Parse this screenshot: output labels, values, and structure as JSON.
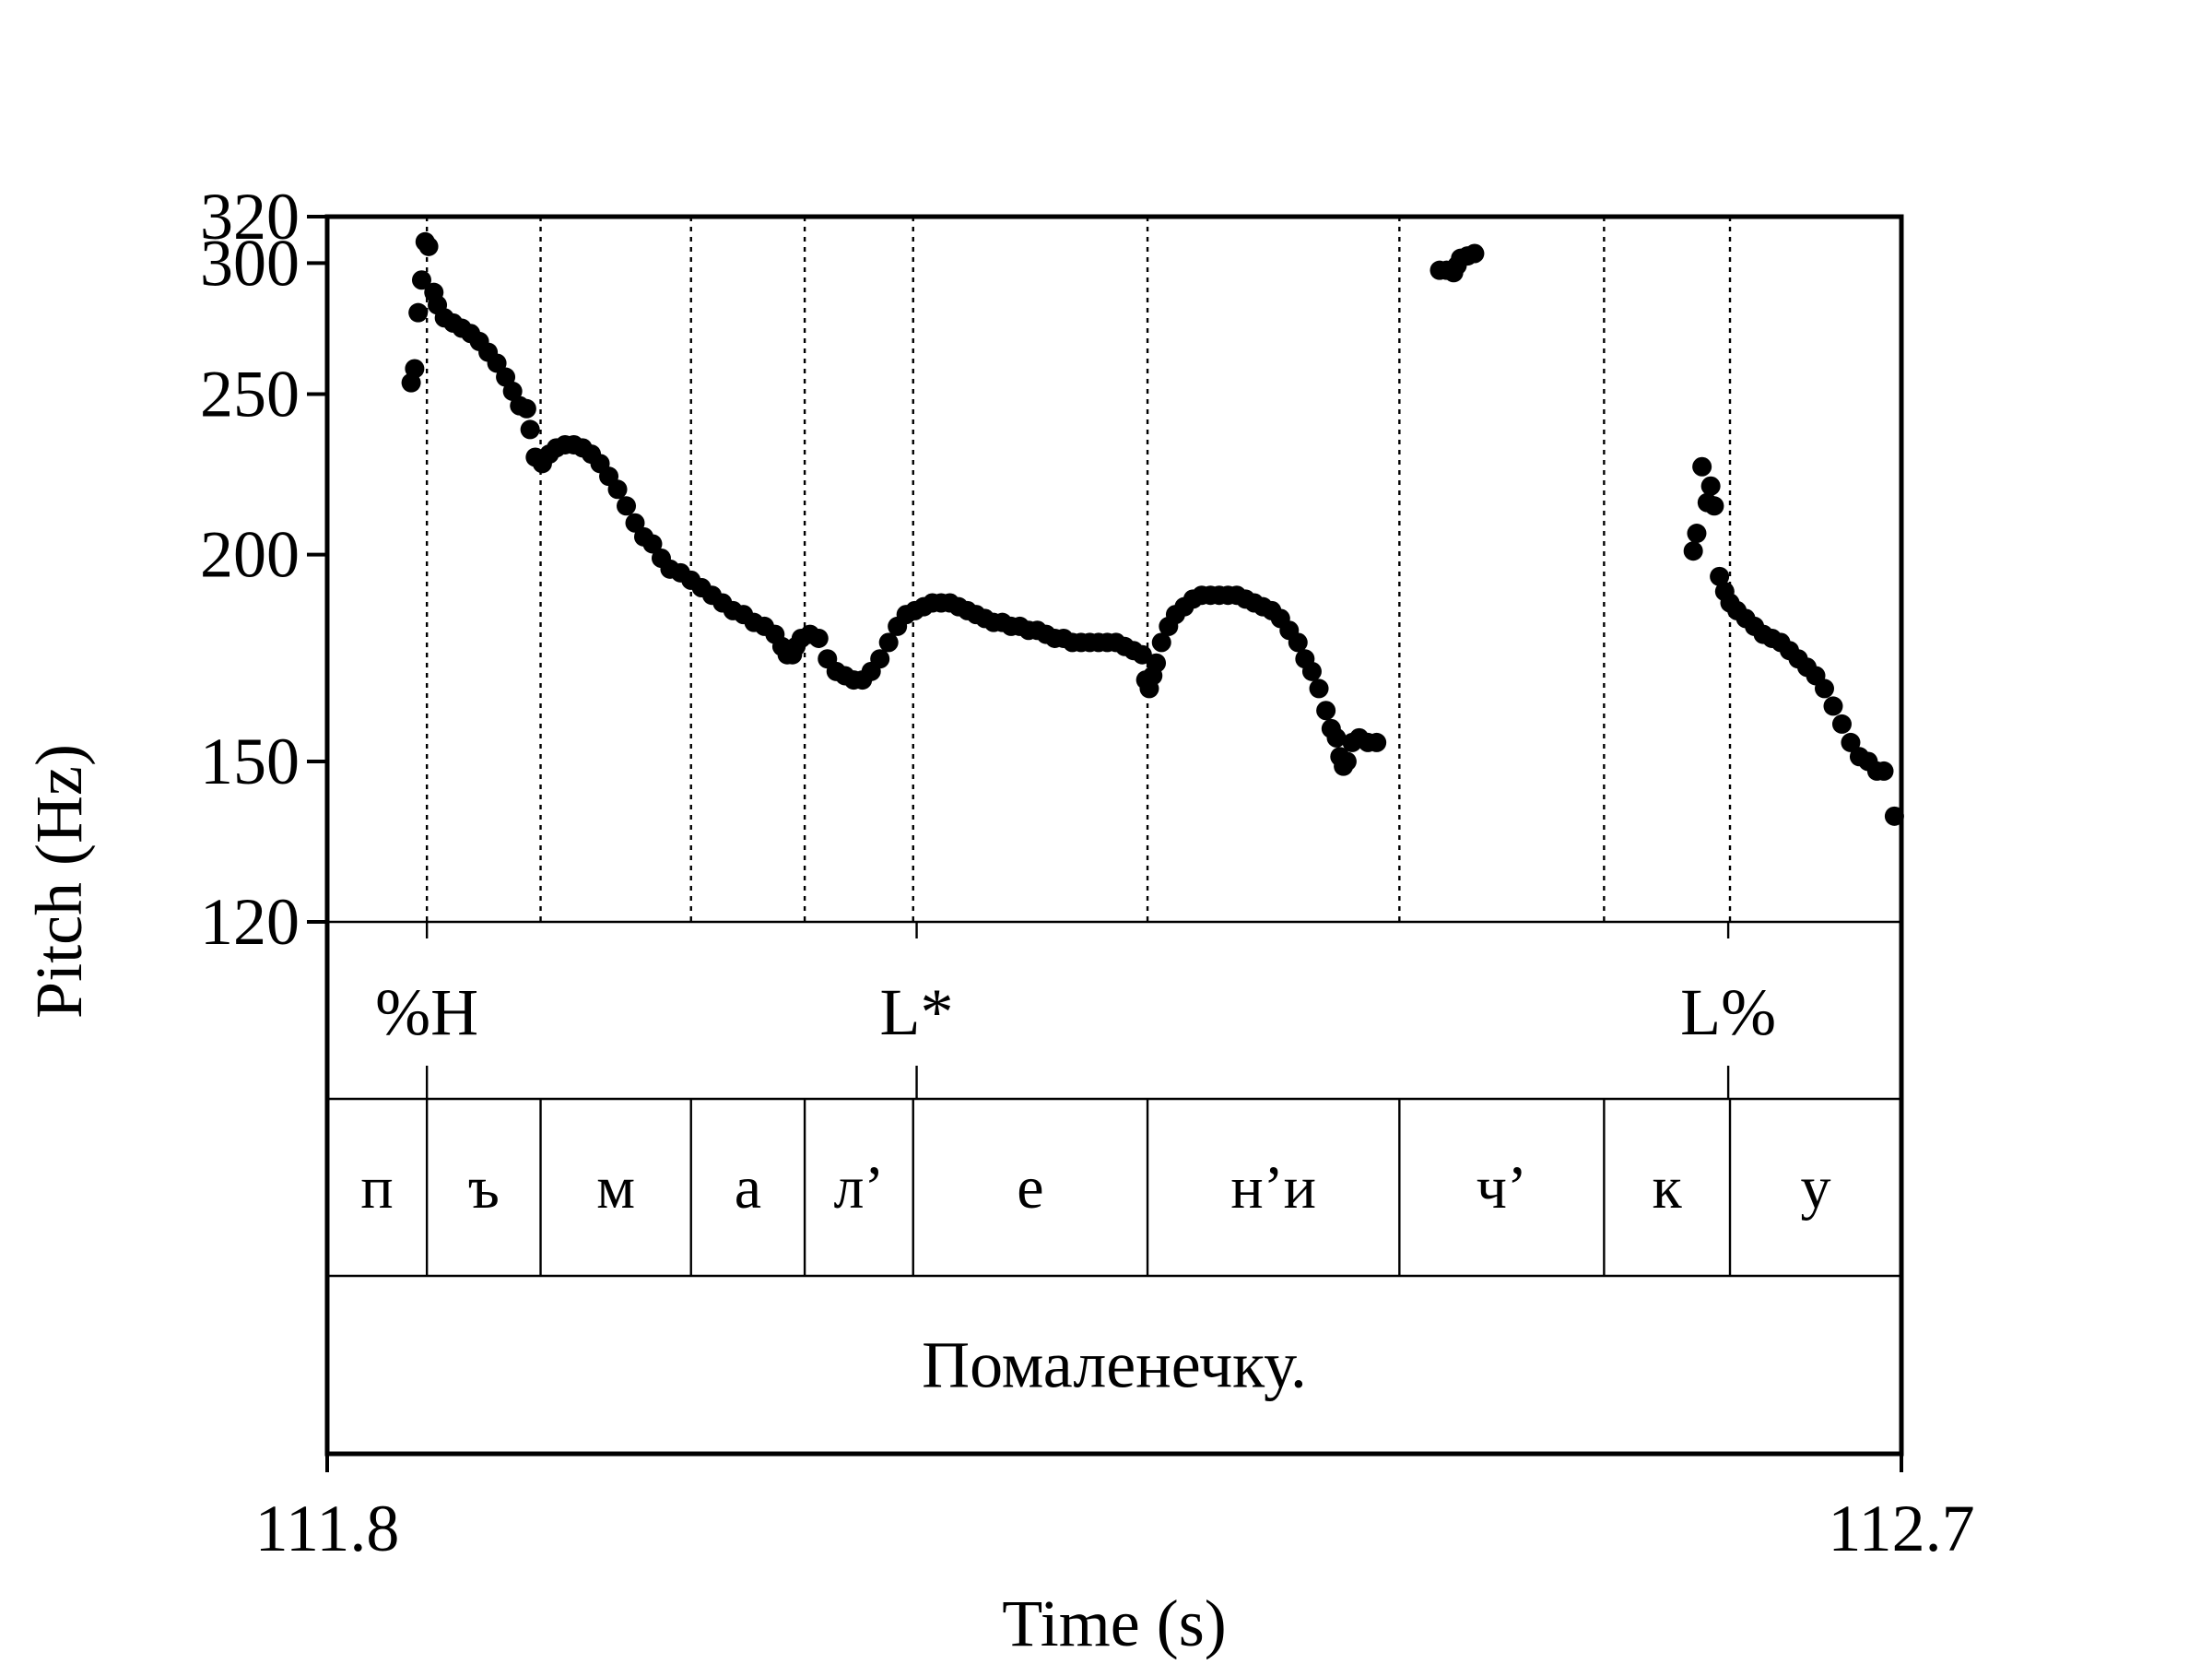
{
  "chart_data": {
    "type": "scatter",
    "title": "",
    "xlabel": "Time (s)",
    "ylabel": "Pitch (Hz)",
    "xlim": [
      111.8,
      112.7
    ],
    "x_tick_labels": [
      "111.8",
      "112.7"
    ],
    "ylim": [
      120,
      320
    ],
    "y_ticks": [
      120,
      150,
      200,
      250,
      300,
      320
    ],
    "y_tick_labels": [
      "120",
      "150",
      "200",
      "250",
      "300",
      "320"
    ],
    "y_scale": "semitone",
    "y_ref_hz": 100,
    "grid": "dotted vertical lines at segment boundaries",
    "tones": [
      {
        "label": "%H",
        "time": 111.857
      },
      {
        "label": "L*",
        "time": 112.137
      },
      {
        "label": "L%",
        "time": 112.601
      }
    ],
    "boundaries": [
      111.857,
      111.922,
      112.008,
      112.073,
      112.135,
      112.269,
      112.413,
      112.53,
      112.602
    ],
    "segments": [
      {
        "label": "п",
        "start": 111.8,
        "end": 111.857
      },
      {
        "label": "ъ",
        "start": 111.857,
        "end": 111.922
      },
      {
        "label": "м",
        "start": 111.922,
        "end": 112.008
      },
      {
        "label": "а",
        "start": 112.008,
        "end": 112.073
      },
      {
        "label": "л’",
        "start": 112.073,
        "end": 112.135
      },
      {
        "label": "е",
        "start": 112.135,
        "end": 112.269
      },
      {
        "label": "н’и",
        "start": 112.269,
        "end": 112.413
      },
      {
        "label": "ч’",
        "start": 112.413,
        "end": 112.53
      },
      {
        "label": "к",
        "start": 112.53,
        "end": 112.602
      },
      {
        "label": "у",
        "start": 112.602,
        "end": 112.7
      }
    ],
    "sentence": "Помаленечку.",
    "series": [
      {
        "points": [
          [
            111.848,
            254
          ],
          [
            111.85,
            259
          ],
          [
            111.852,
            280
          ],
          [
            111.854,
            293
          ],
          [
            111.856,
            309
          ],
          [
            111.858,
            307
          ],
          [
            111.861,
            288
          ],
          [
            111.863,
            283
          ],
          [
            111.867,
            278
          ],
          [
            111.872,
            276
          ],
          [
            111.877,
            274
          ],
          [
            111.882,
            272
          ],
          [
            111.887,
            269
          ],
          [
            111.892,
            265
          ],
          [
            111.897,
            261
          ],
          [
            111.902,
            256
          ],
          [
            111.906,
            251
          ],
          [
            111.91,
            246
          ],
          [
            111.914,
            245
          ],
          [
            111.916,
            238
          ],
          [
            111.919,
            229
          ],
          [
            111.923,
            227
          ],
          [
            111.927,
            230
          ],
          [
            111.931,
            232
          ],
          [
            111.936,
            233
          ],
          [
            111.941,
            233
          ],
          [
            111.946,
            232
          ],
          [
            111.951,
            230
          ],
          [
            111.956,
            227
          ],
          [
            111.961,
            223
          ],
          [
            111.966,
            219
          ],
          [
            111.971,
            214
          ],
          [
            111.976,
            209
          ],
          [
            111.981,
            205
          ],
          [
            111.986,
            203
          ],
          [
            111.991,
            199
          ],
          [
            111.996,
            196
          ],
          [
            112.002,
            195
          ],
          [
            112.008,
            193
          ],
          [
            112.014,
            191
          ],
          [
            112.02,
            189
          ],
          [
            112.026,
            187
          ],
          [
            112.032,
            185
          ],
          [
            112.038,
            184
          ],
          [
            112.044,
            182
          ],
          [
            112.05,
            181
          ],
          [
            112.056,
            179
          ],
          [
            112.06,
            176
          ],
          [
            112.063,
            174
          ],
          [
            112.066,
            174
          ],
          [
            112.068,
            176
          ],
          [
            112.071,
            178
          ],
          [
            112.076,
            179
          ],
          [
            112.081,
            178
          ],
          [
            112.086,
            173
          ],
          [
            112.091,
            170
          ],
          [
            112.096,
            169
          ],
          [
            112.101,
            168
          ],
          [
            112.106,
            168
          ],
          [
            112.111,
            170
          ],
          [
            112.116,
            173
          ],
          [
            112.121,
            177
          ],
          [
            112.126,
            181
          ],
          [
            112.131,
            184
          ],
          [
            112.136,
            185
          ],
          [
            112.141,
            186
          ],
          [
            112.146,
            187
          ],
          [
            112.151,
            187
          ],
          [
            112.156,
            187
          ],
          [
            112.161,
            186
          ],
          [
            112.166,
            185
          ],
          [
            112.171,
            184
          ],
          [
            112.176,
            183
          ],
          [
            112.181,
            182
          ],
          [
            112.186,
            182
          ],
          [
            112.191,
            181
          ],
          [
            112.196,
            181
          ],
          [
            112.201,
            180
          ],
          [
            112.206,
            180
          ],
          [
            112.211,
            179
          ],
          [
            112.216,
            178
          ],
          [
            112.221,
            178
          ],
          [
            112.226,
            177
          ],
          [
            112.231,
            177
          ],
          [
            112.236,
            177
          ],
          [
            112.241,
            177
          ],
          [
            112.246,
            177
          ],
          [
            112.251,
            177
          ],
          [
            112.256,
            176
          ],
          [
            112.261,
            175
          ],
          [
            112.266,
            174
          ],
          [
            112.268,
            168
          ],
          [
            112.27,
            166
          ],
          [
            112.272,
            169
          ],
          [
            112.274,
            172
          ],
          [
            112.277,
            177
          ],
          [
            112.281,
            181
          ],
          [
            112.285,
            184
          ],
          [
            112.29,
            186
          ],
          [
            112.295,
            188
          ],
          [
            112.3,
            189
          ],
          [
            112.305,
            189
          ],
          [
            112.31,
            189
          ],
          [
            112.315,
            189
          ],
          [
            112.32,
            189
          ],
          [
            112.325,
            188
          ],
          [
            112.33,
            187
          ],
          [
            112.335,
            186
          ],
          [
            112.34,
            185
          ],
          [
            112.345,
            183
          ],
          [
            112.35,
            180
          ],
          [
            112.355,
            177
          ],
          [
            112.359,
            173
          ],
          [
            112.363,
            170
          ],
          [
            112.367,
            166
          ],
          [
            112.371,
            161
          ],
          [
            112.374,
            157
          ],
          [
            112.377,
            155
          ],
          [
            112.379,
            151
          ],
          [
            112.381,
            149
          ],
          [
            112.383,
            150
          ],
          [
            112.386,
            154
          ],
          [
            112.39,
            155
          ],
          [
            112.395,
            154
          ],
          [
            112.4,
            154
          ],
          [
            112.436,
            297
          ],
          [
            112.44,
            297
          ],
          [
            112.444,
            296
          ],
          [
            112.446,
            299
          ],
          [
            112.448,
            302
          ],
          [
            112.452,
            303
          ],
          [
            112.456,
            304
          ],
          [
            112.581,
            201
          ],
          [
            112.583,
            206
          ],
          [
            112.586,
            226
          ],
          [
            112.589,
            215
          ],
          [
            112.591,
            220
          ],
          [
            112.593,
            214
          ],
          [
            112.596,
            194
          ],
          [
            112.599,
            190
          ],
          [
            112.602,
            187
          ],
          [
            112.606,
            185
          ],
          [
            112.611,
            183
          ],
          [
            112.616,
            181
          ],
          [
            112.621,
            179
          ],
          [
            112.626,
            178
          ],
          [
            112.631,
            177
          ],
          [
            112.636,
            175
          ],
          [
            112.641,
            173
          ],
          [
            112.646,
            171
          ],
          [
            112.651,
            169
          ],
          [
            112.656,
            166
          ],
          [
            112.661,
            162
          ],
          [
            112.666,
            158
          ],
          [
            112.671,
            154
          ],
          [
            112.676,
            151
          ],
          [
            112.681,
            150
          ],
          [
            112.686,
            148
          ],
          [
            112.69,
            148
          ],
          [
            112.696,
            139
          ]
        ]
      }
    ]
  }
}
